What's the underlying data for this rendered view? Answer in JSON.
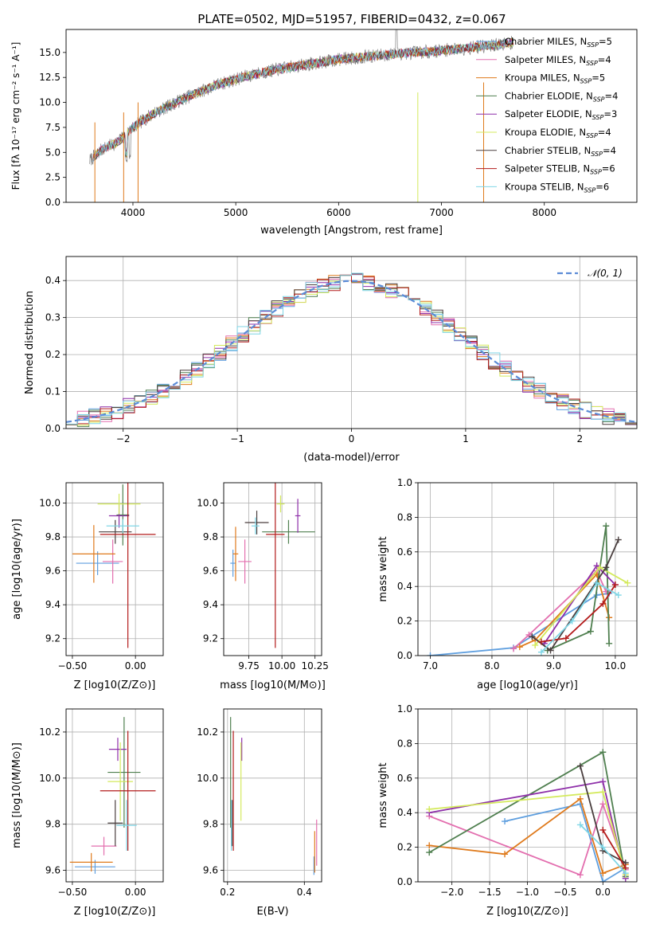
{
  "figure_title": "PLATE=0502, MJD=51957, FIBERID=0432, z=0.067",
  "colors": {
    "chabrier_miles": "#5f9fdf",
    "salpeter_miles": "#e36faf",
    "kroupa_miles": "#df7a1c",
    "chabrier_elodie": "#4f7f4f",
    "salpeter_elodie": "#8e2fa9",
    "kroupa_elodie": "#d4ea5c",
    "chabrier_stelib": "#4a3f3f",
    "salpeter_stelib": "#b31b1b",
    "kroupa_stelib": "#7fd6e6",
    "data_spectrum": "#808080",
    "gaussian": "#5b8bd6"
  },
  "chart_data": [
    {
      "id": "spectrum",
      "type": "line",
      "title": "PLATE=0502, MJD=51957, FIBERID=0432, z=0.067",
      "xlabel": "wavelength [Angstrom, rest frame]",
      "ylabel": "Flux [fλ 10⁻¹⁷ erg cm⁻² s⁻¹ A⁻¹]",
      "xlim": [
        3350,
        8900
      ],
      "ylim": [
        0,
        17.3
      ],
      "xticks": [
        4000,
        5000,
        6000,
        7000,
        8000
      ],
      "yticks": [
        0.0,
        2.5,
        5.0,
        7.5,
        10.0,
        12.5,
        15.0
      ],
      "legend_position": "top-right",
      "continuum": {
        "x": [
          3580,
          3700,
          3850,
          4000,
          4200,
          4500,
          4800,
          5100,
          5400,
          5700,
          6000,
          6300,
          6600,
          6900,
          7200,
          7500,
          7700
        ],
        "y": [
          4.2,
          5.3,
          6.0,
          7.5,
          8.9,
          10.4,
          11.7,
          12.6,
          13.3,
          13.8,
          14.3,
          14.6,
          14.9,
          15.1,
          15.4,
          15.7,
          16.0
        ]
      },
      "series": [
        {
          "name": "Chabrier MILES, N_SSP=5",
          "key": "chabrier_miles"
        },
        {
          "name": "Salpeter MILES, N_SSP=4",
          "key": "salpeter_miles"
        },
        {
          "name": "Kroupa MILES, N_SSP=5",
          "key": "kroupa_miles"
        },
        {
          "name": "Chabrier ELODIE, N_SSP=4",
          "key": "chabrier_elodie"
        },
        {
          "name": "Salpeter ELODIE, N_SSP=3",
          "key": "salpeter_elodie"
        },
        {
          "name": "Kroupa ELODIE, N_SSP=4",
          "key": "kroupa_elodie"
        },
        {
          "name": "Chabrier STELIB, N_SSP=4",
          "key": "chabrier_stelib"
        },
        {
          "name": "Salpeter STELIB, N_SSP=6",
          "key": "salpeter_stelib"
        },
        {
          "name": "Kroupa STELIB, N_SSP=6",
          "key": "kroupa_stelib"
        }
      ],
      "legend_labels": [
        {
          "text": "Chabrier MILES, N",
          "sub": "SSP",
          "tail": "=5"
        },
        {
          "text": "Salpeter MILES, N",
          "sub": "SSP",
          "tail": "=4"
        },
        {
          "text": "Kroupa MILES, N",
          "sub": "SSP",
          "tail": "=5"
        },
        {
          "text": "Chabrier ELODIE, N",
          "sub": "SSP",
          "tail": "=4"
        },
        {
          "text": "Salpeter ELODIE, N",
          "sub": "SSP",
          "tail": "=3"
        },
        {
          "text": "Kroupa ELODIE, N",
          "sub": "SSP",
          "tail": "=4"
        },
        {
          "text": "Chabrier STELIB, N",
          "sub": "SSP",
          "tail": "=4"
        },
        {
          "text": "Salpeter STELIB, N",
          "sub": "SSP",
          "tail": "=6"
        },
        {
          "text": "Kroupa STELIB, N",
          "sub": "SSP",
          "tail": "=6"
        }
      ]
    },
    {
      "id": "residuals",
      "type": "line",
      "xlabel": "(data-model)/error",
      "ylabel": "Normed distribution",
      "xlim": [
        -2.5,
        2.5
      ],
      "ylim": [
        0,
        0.465
      ],
      "xticks": [
        -2,
        -1,
        0,
        1,
        2
      ],
      "yticks": [
        0.0,
        0.1,
        0.2,
        0.3,
        0.4
      ],
      "grid": true,
      "legend_position": "top-right",
      "legend": "𝒩(0, 1)",
      "bin_width": 0.1,
      "bin_start": -2.5
    },
    {
      "id": "age_vs_Z",
      "type": "scatter",
      "xlabel": "Z [log10(Z/Z⊙)]",
      "ylabel": "age  [log10(age/yr)]",
      "xlim": [
        -0.55,
        0.22
      ],
      "ylim": [
        9.1,
        10.12
      ],
      "xticks": [
        -0.5,
        0.0
      ],
      "yticks": [
        9.2,
        9.4,
        9.6,
        9.8,
        10.0
      ],
      "grid": true,
      "points": [
        {
          "key": "chabrier_miles",
          "x": -0.3,
          "y": 9.645,
          "xerr": 0.17,
          "yerr": 0.07
        },
        {
          "key": "salpeter_miles",
          "x": -0.18,
          "y": 9.655,
          "xerr": 0.08,
          "yerr": 0.13
        },
        {
          "key": "kroupa_miles",
          "x": -0.33,
          "y": 9.7,
          "xerr": 0.17,
          "yerr": 0.17
        },
        {
          "key": "chabrier_elodie",
          "x": -0.1,
          "y": 9.93,
          "xerr": 0.05,
          "yerr": 0.18
        },
        {
          "key": "salpeter_elodie",
          "x": -0.13,
          "y": 9.925,
          "xerr": 0.08,
          "yerr": 0.07
        },
        {
          "key": "kroupa_elodie",
          "x": -0.13,
          "y": 9.995,
          "xerr": 0.17,
          "yerr": 0.06
        },
        {
          "key": "chabrier_stelib",
          "x": -0.16,
          "y": 9.83,
          "xerr": 0.13,
          "yerr": 0.07
        },
        {
          "key": "salpeter_stelib",
          "x": -0.06,
          "y": 9.815,
          "xerr": 0.22,
          "yerr": 0.67
        },
        {
          "key": "kroupa_stelib",
          "x": -0.1,
          "y": 9.865,
          "xerr": 0.13,
          "yerr": 0.04
        }
      ]
    },
    {
      "id": "age_vs_mass",
      "type": "scatter",
      "xlabel": "mass [log10(M/M⊙)]",
      "xlim": [
        9.56,
        10.3
      ],
      "ylim": [
        9.1,
        10.12
      ],
      "xticks": [
        9.75,
        10.0,
        10.25
      ],
      "xticklabels": [
        "9.75",
        "10.00",
        "10.25"
      ],
      "yticks": [
        9.2,
        9.4,
        9.6,
        9.8,
        10.0
      ],
      "grid": true,
      "points": [
        {
          "key": "chabrier_miles",
          "x": 9.63,
          "y": 9.645,
          "xerr": 0.02,
          "yerr": 0.08
        },
        {
          "key": "salpeter_miles",
          "x": 9.72,
          "y": 9.655,
          "xerr": 0.05,
          "yerr": 0.13
        },
        {
          "key": "kroupa_miles",
          "x": 9.65,
          "y": 9.7,
          "xerr": 0.02,
          "yerr": 0.16
        },
        {
          "key": "chabrier_elodie",
          "x": 10.05,
          "y": 9.83,
          "xerr": 0.2,
          "yerr": 0.07
        },
        {
          "key": "salpeter_elodie",
          "x": 10.12,
          "y": 9.925,
          "xerr": 0.02,
          "yerr": 0.1
        },
        {
          "key": "kroupa_elodie",
          "x": 9.99,
          "y": 9.995,
          "xerr": 0.03,
          "yerr": 0.05
        },
        {
          "key": "chabrier_stelib",
          "x": 9.81,
          "y": 9.885,
          "xerr": 0.09,
          "yerr": 0.07
        },
        {
          "key": "salpeter_stelib",
          "x": 9.95,
          "y": 9.815,
          "xerr": 0.07,
          "yerr": 0.67
        },
        {
          "key": "kroupa_stelib",
          "x": 9.8,
          "y": 9.865,
          "xerr": 0.03,
          "yerr": 0.05
        }
      ]
    },
    {
      "id": "weight_vs_age",
      "type": "line",
      "xlabel": "age  [log10(age/yr)]",
      "ylabel": "mass weight",
      "xlim": [
        6.8,
        10.35
      ],
      "ylim": [
        0,
        1
      ],
      "xticks": [
        7,
        8,
        9,
        10
      ],
      "yticks": [
        0.0,
        0.2,
        0.4,
        0.6,
        0.8,
        1.0
      ],
      "grid": true,
      "series": [
        {
          "key": "chabrier_miles",
          "x": [
            7.0,
            8.35,
            9.7,
            9.9
          ],
          "y": [
            0.0,
            0.045,
            0.35,
            0.36
          ]
        },
        {
          "key": "salpeter_miles",
          "x": [
            8.35,
            8.6,
            9.7,
            9.85
          ],
          "y": [
            0.04,
            0.12,
            0.49,
            0.37
          ]
        },
        {
          "key": "kroupa_miles",
          "x": [
            8.45,
            8.7,
            9.7,
            9.9
          ],
          "y": [
            0.05,
            0.09,
            0.47,
            0.22
          ]
        },
        {
          "key": "chabrier_elodie",
          "x": [
            8.9,
            9.6,
            9.85,
            9.9
          ],
          "y": [
            0.03,
            0.14,
            0.75,
            0.07
          ]
        },
        {
          "key": "salpeter_elodie",
          "x": [
            8.85,
            9.7,
            10.0
          ],
          "y": [
            0.07,
            0.52,
            0.41
          ]
        },
        {
          "key": "kroupa_elodie",
          "x": [
            8.7,
            9.75,
            10.2
          ],
          "y": [
            0.06,
            0.51,
            0.42
          ]
        },
        {
          "key": "chabrier_stelib",
          "x": [
            8.65,
            8.95,
            9.85,
            10.05
          ],
          "y": [
            0.11,
            0.03,
            0.51,
            0.67
          ]
        },
        {
          "key": "salpeter_stelib",
          "x": [
            8.8,
            9.2,
            9.8,
            10.0
          ],
          "y": [
            0.08,
            0.1,
            0.3,
            0.41
          ]
        },
        {
          "key": "kroupa_stelib",
          "x": [
            8.8,
            9.3,
            9.7,
            10.05
          ],
          "y": [
            0.02,
            0.2,
            0.42,
            0.35
          ]
        }
      ]
    },
    {
      "id": "mass_vs_Z",
      "type": "scatter",
      "xlabel": "Z [log10(Z/Z⊙)]",
      "ylabel": "mass [log10(M/M⊙)]",
      "xlim": [
        -0.55,
        0.22
      ],
      "ylim": [
        9.55,
        10.3
      ],
      "xticks": [
        -0.5,
        0.0
      ],
      "yticks": [
        9.6,
        9.8,
        10.0,
        10.2
      ],
      "grid": true,
      "points": [
        {
          "key": "chabrier_miles",
          "x": -0.32,
          "y": 9.615,
          "xerr": 0.16,
          "yerr": 0.03
        },
        {
          "key": "salpeter_miles",
          "x": -0.25,
          "y": 9.705,
          "xerr": 0.1,
          "yerr": 0.04
        },
        {
          "key": "kroupa_miles",
          "x": -0.35,
          "y": 9.635,
          "xerr": 0.17,
          "yerr": 0.04
        },
        {
          "key": "chabrier_elodie",
          "x": -0.09,
          "y": 10.025,
          "xerr": 0.13,
          "yerr": 0.24
        },
        {
          "key": "salpeter_elodie",
          "x": -0.14,
          "y": 10.125,
          "xerr": 0.07,
          "yerr": 0.05
        },
        {
          "key": "kroupa_elodie",
          "x": -0.12,
          "y": 9.985,
          "xerr": 0.1,
          "yerr": 0.17
        },
        {
          "key": "chabrier_stelib",
          "x": -0.16,
          "y": 9.805,
          "xerr": 0.06,
          "yerr": 0.1
        },
        {
          "key": "salpeter_stelib",
          "x": -0.06,
          "y": 9.945,
          "xerr": 0.22,
          "yerr": 0.26
        },
        {
          "key": "kroupa_stelib",
          "x": -0.07,
          "y": 9.795,
          "xerr": 0.08,
          "yerr": 0.11
        }
      ]
    },
    {
      "id": "mass_vs_ebv",
      "type": "scatter",
      "xlabel": "E(B-V)",
      "xlim": [
        0.19,
        0.445
      ],
      "ylim": [
        9.55,
        10.3
      ],
      "xticks": [
        0.2,
        0.4
      ],
      "xticklabels": [
        "0.2",
        "0.4"
      ],
      "yticks": [
        9.6,
        9.8,
        10.0,
        10.2
      ],
      "grid": true,
      "points": [
        {
          "key": "chabrier_miles",
          "x": 0.425,
          "y": 9.62,
          "xerr": 0.0,
          "yerr": 0.04
        },
        {
          "key": "salpeter_miles",
          "x": 0.432,
          "y": 9.72,
          "xerr": 0.0,
          "yerr": 0.1
        },
        {
          "key": "kroupa_miles",
          "x": 0.427,
          "y": 9.68,
          "xerr": 0.0,
          "yerr": 0.09
        },
        {
          "key": "chabrier_elodie",
          "x": 0.208,
          "y": 10.025,
          "xerr": 0.0,
          "yerr": 0.24
        },
        {
          "key": "salpeter_elodie",
          "x": 0.237,
          "y": 10.125,
          "xerr": 0.0,
          "yerr": 0.05
        },
        {
          "key": "kroupa_elodie",
          "x": 0.235,
          "y": 9.985,
          "xerr": 0.0,
          "yerr": 0.17
        },
        {
          "key": "chabrier_stelib",
          "x": 0.212,
          "y": 9.805,
          "xerr": 0.0,
          "yerr": 0.1
        },
        {
          "key": "salpeter_stelib",
          "x": 0.215,
          "y": 9.945,
          "xerr": 0.0,
          "yerr": 0.26
        },
        {
          "key": "kroupa_stelib",
          "x": 0.21,
          "y": 9.795,
          "xerr": 0.0,
          "yerr": 0.11
        }
      ]
    },
    {
      "id": "weight_vs_Z",
      "type": "line",
      "xlabel": "Z [log10(Z/Z⊙)]",
      "ylabel": "mass weight",
      "xlim": [
        -2.45,
        0.45
      ],
      "ylim": [
        0,
        1
      ],
      "xticks": [
        -2.0,
        -1.5,
        -1.0,
        -0.5,
        0.0
      ],
      "xticklabels": [
        "−2.0",
        "−1.5",
        "−1.0",
        "−0.5",
        "0.0"
      ],
      "yticks": [
        0.0,
        0.2,
        0.4,
        0.6,
        0.8,
        1.0
      ],
      "grid": true,
      "series": [
        {
          "key": "chabrier_miles",
          "x": [
            -1.3,
            -0.3,
            0.0,
            0.3
          ],
          "y": [
            0.35,
            0.45,
            0.0,
            0.08
          ]
        },
        {
          "key": "salpeter_miles",
          "x": [
            -2.3,
            -0.3,
            0.0,
            0.3
          ],
          "y": [
            0.38,
            0.04,
            0.45,
            0.07
          ]
        },
        {
          "key": "kroupa_miles",
          "x": [
            -2.3,
            -1.3,
            -0.3,
            0.0,
            0.3
          ],
          "y": [
            0.21,
            0.16,
            0.48,
            0.05,
            0.1
          ]
        },
        {
          "key": "chabrier_elodie",
          "x": [
            -2.3,
            0.0,
            0.3
          ],
          "y": [
            0.17,
            0.75,
            0.03
          ]
        },
        {
          "key": "salpeter_elodie",
          "x": [
            -2.3,
            0.0,
            0.3
          ],
          "y": [
            0.4,
            0.58,
            0.02
          ]
        },
        {
          "key": "kroupa_elodie",
          "x": [
            -2.3,
            0.0,
            0.3
          ],
          "y": [
            0.42,
            0.52,
            0.04
          ]
        },
        {
          "key": "chabrier_stelib",
          "x": [
            -0.3,
            0.0,
            0.3
          ],
          "y": [
            0.67,
            0.18,
            0.11
          ]
        },
        {
          "key": "salpeter_stelib",
          "x": [
            0.0,
            0.3
          ],
          "y": [
            0.3,
            0.08
          ]
        },
        {
          "key": "kroupa_stelib",
          "x": [
            -0.3,
            0.0,
            0.3
          ],
          "y": [
            0.33,
            0.2,
            0.05
          ]
        }
      ]
    }
  ]
}
